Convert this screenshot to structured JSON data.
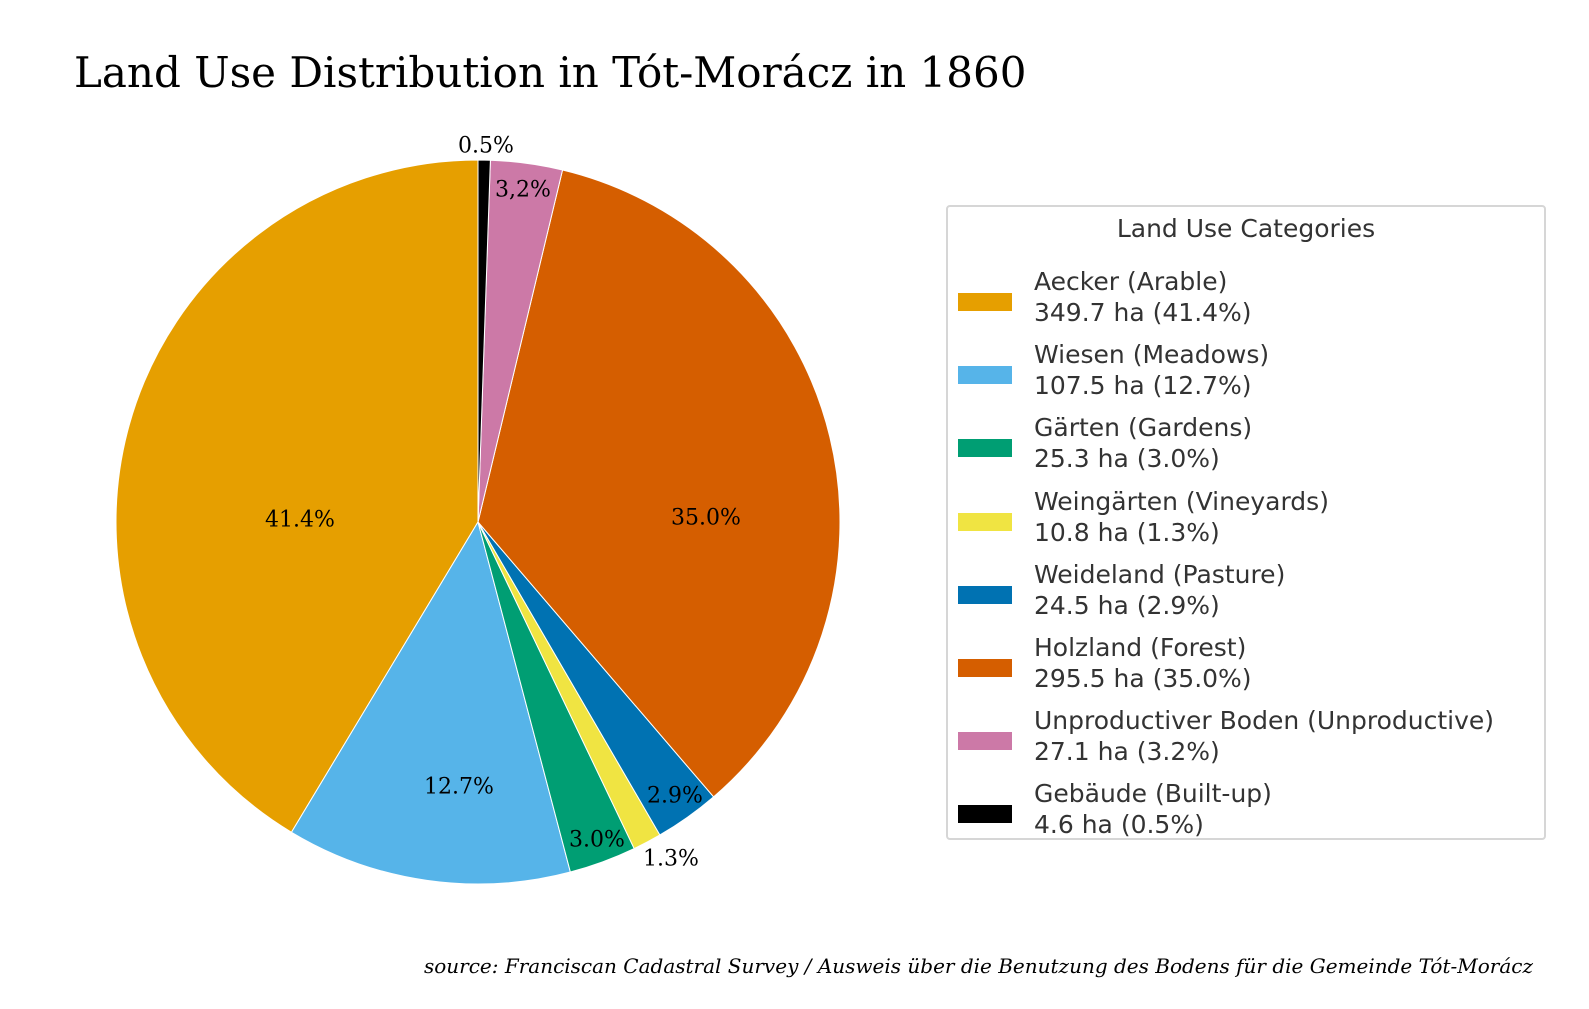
{
  "chart_data": {
    "type": "pie",
    "title": "Land Use Distribution in Tót-Morácz in 1860",
    "start_angle_deg": 90,
    "direction": "counterclockwise",
    "legend_title": "Land Use Categories",
    "legend_placement": "right",
    "source": "source: Franciscan Cadastral Survey / Ausweis über die Benutzung des Bodens für die Gemeinde Tót-Morácz",
    "slices": [
      {
        "label": "Aecker (Arable)",
        "value_ha": 349.7,
        "percent_text": "41.4%",
        "legend_value": "349.7 ha (41.4%)",
        "color": "#E69F00"
      },
      {
        "label": "Wiesen (Meadows)",
        "value_ha": 107.5,
        "percent_text": "12.7%",
        "legend_value": "107.5 ha (12.7%)",
        "color": "#56B4E9"
      },
      {
        "label": "Gärten (Gardens)",
        "value_ha": 25.3,
        "percent_text": "3.0%",
        "legend_value": "25.3 ha (3.0%)",
        "color": "#009E73"
      },
      {
        "label": "Weingärten (Vineyards)",
        "value_ha": 10.8,
        "percent_text": "1.3%",
        "legend_value": "10.8 ha (1.3%)",
        "color": "#F0E442"
      },
      {
        "label": "Weideland (Pasture)",
        "value_ha": 24.5,
        "percent_text": "2.9%",
        "legend_value": "24.5 ha (2.9%)",
        "color": "#0072B2"
      },
      {
        "label": "Holzland (Forest)",
        "value_ha": 295.5,
        "percent_text": "35.0%",
        "legend_value": "295.5 ha (35.0%)",
        "color": "#D55E00"
      },
      {
        "label": "Unproductiver Boden (Unproductive)",
        "value_ha": 27.1,
        "percent_text": "3,2%",
        "legend_value": "27.1 ha (3.2%)",
        "color": "#CC79A7"
      },
      {
        "label": "Gebäude (Built-up)",
        "value_ha": 4.6,
        "percent_text": "0.5%",
        "legend_value": "4.6 ha (0.5%)",
        "color": "#000000"
      }
    ]
  }
}
